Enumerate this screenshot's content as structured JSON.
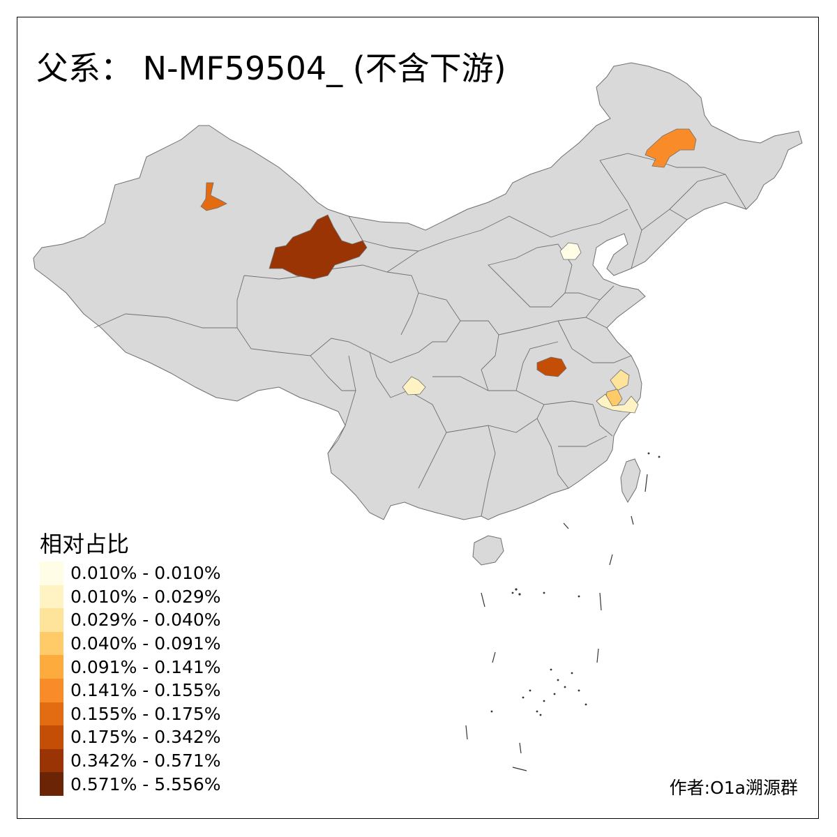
{
  "title": "父系： N-MF59504_ (不含下游)",
  "legend": {
    "title": "相对占比",
    "items": [
      {
        "label": "0.010% - 0.010%",
        "color": "#fffde6"
      },
      {
        "label": "0.010% - 0.029%",
        "color": "#fff3c4"
      },
      {
        "label": "0.029% - 0.040%",
        "color": "#fee39a"
      },
      {
        "label": "0.040% - 0.091%",
        "color": "#fecb68"
      },
      {
        "label": "0.091% - 0.141%",
        "color": "#feab3d"
      },
      {
        "label": "0.141% - 0.155%",
        "color": "#f98c29"
      },
      {
        "label": "0.155% - 0.175%",
        "color": "#e36c13"
      },
      {
        "label": "0.175% - 0.342%",
        "color": "#c54e07"
      },
      {
        "label": "0.342% - 0.571%",
        "color": "#9a3404"
      },
      {
        "label": "0.571% - 5.556%",
        "color": "#6b2506"
      }
    ]
  },
  "author": "作者:O1a溯源群",
  "colors": {
    "base_region": "#d9d9d9",
    "border": "#6e6e6e",
    "sea": "#ffffff"
  },
  "regions": [
    {
      "name": "Hulunbuir area",
      "legend_index": 5
    },
    {
      "name": "Beijing area",
      "legend_index": 0
    },
    {
      "name": "Tarbagatai area",
      "legend_index": 6
    },
    {
      "name": "Haixi area",
      "legend_index": 8
    },
    {
      "name": "Xinyang area",
      "legend_index": 7
    },
    {
      "name": "Chengdu area",
      "legend_index": 1
    },
    {
      "name": "Jiangsu-Anhui area A",
      "legend_index": 2
    },
    {
      "name": "Jiangsu-Anhui area B",
      "legend_index": 3
    },
    {
      "name": "Jiangsu-Anhui area C",
      "legend_index": 1
    }
  ]
}
